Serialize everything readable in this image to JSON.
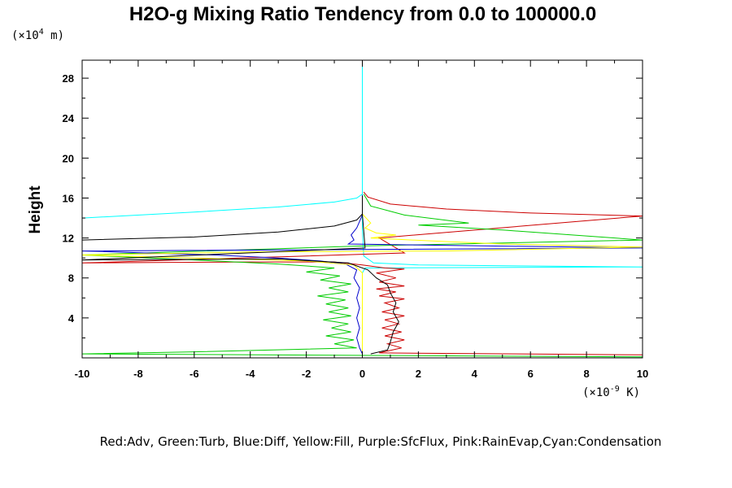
{
  "chart_data": {
    "type": "line",
    "title": "H2O-g Mixing Ratio Tendency from 0.0 to 100000.0",
    "ylabel": "Height",
    "y_units": {
      "prefix": "(×10",
      "exp": "4",
      "suffix": " m)"
    },
    "x_units": {
      "prefix": "(×10",
      "exp": "-9",
      "suffix": " K)"
    },
    "xlim": [
      -10,
      10
    ],
    "ylim": [
      0,
      29.8
    ],
    "x_ticks": [
      -10,
      -8,
      -6,
      -4,
      -2,
      0,
      2,
      4,
      6,
      8,
      10
    ],
    "y_ticks": [
      4,
      8,
      12,
      16,
      20,
      24,
      28
    ],
    "grid": false,
    "legend_text": "Red:Adv, Green:Turb, Blue:Diff, Yellow:Fill, Purple:SfcFlux, Pink:RainEvap,Cyan:Condensation",
    "series": [
      {
        "color": "#00ffff",
        "points": [
          [
            -10,
            14.0
          ],
          [
            -6,
            14.6
          ],
          [
            -3,
            15.1
          ],
          [
            -1,
            15.6
          ],
          [
            -0.2,
            16.0
          ],
          [
            0,
            16.4
          ],
          [
            0,
            18
          ],
          [
            0,
            22
          ],
          [
            0,
            26
          ],
          [
            0,
            29.8
          ],
          [
            0,
            16.3
          ],
          [
            0,
            13
          ],
          [
            0.05,
            10.2
          ],
          [
            0.4,
            9.5
          ],
          [
            2,
            9.3
          ],
          [
            6,
            9.2
          ],
          [
            10,
            9.1
          ],
          [
            0.1,
            9.0
          ],
          [
            0,
            8.5
          ],
          [
            0,
            6
          ],
          [
            0,
            3
          ],
          [
            0,
            1.5
          ],
          [
            0,
            0.4
          ]
        ]
      },
      {
        "color": "#cc0000",
        "points": [
          [
            0.05,
            16.6
          ],
          [
            0.2,
            16.1
          ],
          [
            1,
            15.4
          ],
          [
            3,
            14.9
          ],
          [
            6,
            14.5
          ],
          [
            10,
            14.2
          ],
          [
            0.6,
            12
          ],
          [
            1.5,
            10.5
          ],
          [
            -10,
            9.5
          ],
          [
            -4,
            9.6
          ],
          [
            -1,
            9.6
          ],
          [
            0,
            9.3
          ],
          [
            0.8,
            9.0
          ],
          [
            1.5,
            8.9
          ],
          [
            0.5,
            8.5
          ],
          [
            1.2,
            8.0
          ],
          [
            0.6,
            7.6
          ],
          [
            1.5,
            7.2
          ],
          [
            0.5,
            6.9
          ],
          [
            1.2,
            6.6
          ],
          [
            0.6,
            6.2
          ],
          [
            1.5,
            5.9
          ],
          [
            0.8,
            5.5
          ],
          [
            1.3,
            5.0
          ],
          [
            0.7,
            4.6
          ],
          [
            1.5,
            4.2
          ],
          [
            0.8,
            3.8
          ],
          [
            1.3,
            3.4
          ],
          [
            0.7,
            3.0
          ],
          [
            1.4,
            2.6
          ],
          [
            0.8,
            2.2
          ],
          [
            1.5,
            1.8
          ],
          [
            0.9,
            1.4
          ],
          [
            1.4,
            1.0
          ],
          [
            0.6,
            0.5
          ],
          [
            10,
            0.3
          ]
        ]
      },
      {
        "color": "#00cc00",
        "points": [
          [
            0.05,
            16.4
          ],
          [
            0.3,
            15.2
          ],
          [
            1.5,
            14.3
          ],
          [
            3.8,
            13.5
          ],
          [
            2,
            13.3
          ],
          [
            5,
            12.8
          ],
          [
            10,
            11.8
          ],
          [
            0,
            11.2
          ],
          [
            -10,
            10.3
          ],
          [
            -6,
            9.8
          ],
          [
            -3,
            9.4
          ],
          [
            -1,
            9.0
          ],
          [
            -2,
            8.6
          ],
          [
            -0.8,
            8.2
          ],
          [
            -1.5,
            7.8
          ],
          [
            -0.4,
            7.4
          ],
          [
            -1.2,
            7.0
          ],
          [
            -0.5,
            6.6
          ],
          [
            -1.6,
            6.2
          ],
          [
            -0.6,
            5.8
          ],
          [
            -1.3,
            5.4
          ],
          [
            -0.5,
            5.0
          ],
          [
            -1.2,
            4.6
          ],
          [
            -0.4,
            4.2
          ],
          [
            -1.4,
            3.8
          ],
          [
            -0.5,
            3.4
          ],
          [
            -1.1,
            3.0
          ],
          [
            -0.4,
            2.6
          ],
          [
            -1.3,
            2.2
          ],
          [
            -0.3,
            1.8
          ],
          [
            -1,
            1.4
          ],
          [
            -0.2,
            1.0
          ],
          [
            -6,
            0.6
          ],
          [
            -10,
            0.4
          ],
          [
            10,
            0.1
          ]
        ]
      },
      {
        "color": "#0000cc",
        "points": [
          [
            0,
            16.3
          ],
          [
            0,
            14.3
          ],
          [
            -0.2,
            13.0
          ],
          [
            -0.4,
            12.3
          ],
          [
            -0.3,
            11.8
          ],
          [
            -0.5,
            11.4
          ],
          [
            10,
            11.0
          ],
          [
            -10,
            10.7
          ],
          [
            -5.3,
            10.3
          ],
          [
            -3,
            10.0
          ],
          [
            -1.5,
            9.7
          ],
          [
            -0.6,
            9.4
          ],
          [
            -0.2,
            8.8
          ],
          [
            -0.3,
            8.0
          ],
          [
            -0.1,
            7.0
          ],
          [
            -0.2,
            6.0
          ],
          [
            -0.1,
            5.0
          ],
          [
            -0.2,
            4.0
          ],
          [
            -0.1,
            3.0
          ],
          [
            -0.2,
            2.0
          ],
          [
            -0.1,
            1.0
          ],
          [
            0,
            0.4
          ]
        ]
      },
      {
        "color": "#ffff00",
        "points": [
          [
            0,
            16.0
          ],
          [
            0,
            14.4
          ],
          [
            0.3,
            13.5
          ],
          [
            0.1,
            13.0
          ],
          [
            0.5,
            12.5
          ],
          [
            1.2,
            12.3
          ],
          [
            0.3,
            12.0
          ],
          [
            2.5,
            11.7
          ],
          [
            5,
            11.4
          ],
          [
            10,
            11.1
          ],
          [
            3,
            10.7
          ],
          [
            -4,
            10.6
          ],
          [
            -10,
            10.3
          ],
          [
            -6,
            10.0
          ],
          [
            -2,
            9.7
          ],
          [
            -0.3,
            9.3
          ],
          [
            0,
            8.5
          ],
          [
            0,
            0.5
          ]
        ]
      },
      {
        "color": "#000000",
        "points": [
          [
            -10,
            11.8
          ],
          [
            -6,
            12.1
          ],
          [
            -3,
            12.6
          ],
          [
            -1,
            13.2
          ],
          [
            -0.2,
            13.8
          ],
          [
            0,
            14.4
          ],
          [
            0,
            16.2
          ],
          [
            0,
            14.4
          ],
          [
            0.1,
            11.0
          ],
          [
            -10,
            9.8
          ],
          [
            -3,
            9.9
          ],
          [
            -0.5,
            9.5
          ],
          [
            0.2,
            8.8
          ],
          [
            0.5,
            8.0
          ],
          [
            0.9,
            7.3
          ],
          [
            1,
            6.5
          ],
          [
            1.2,
            5.5
          ],
          [
            1.1,
            4.6
          ],
          [
            1.3,
            3.6
          ],
          [
            1.1,
            2.6
          ],
          [
            1.0,
            1.6
          ],
          [
            0.9,
            0.8
          ],
          [
            0.3,
            0.4
          ]
        ]
      }
    ]
  }
}
